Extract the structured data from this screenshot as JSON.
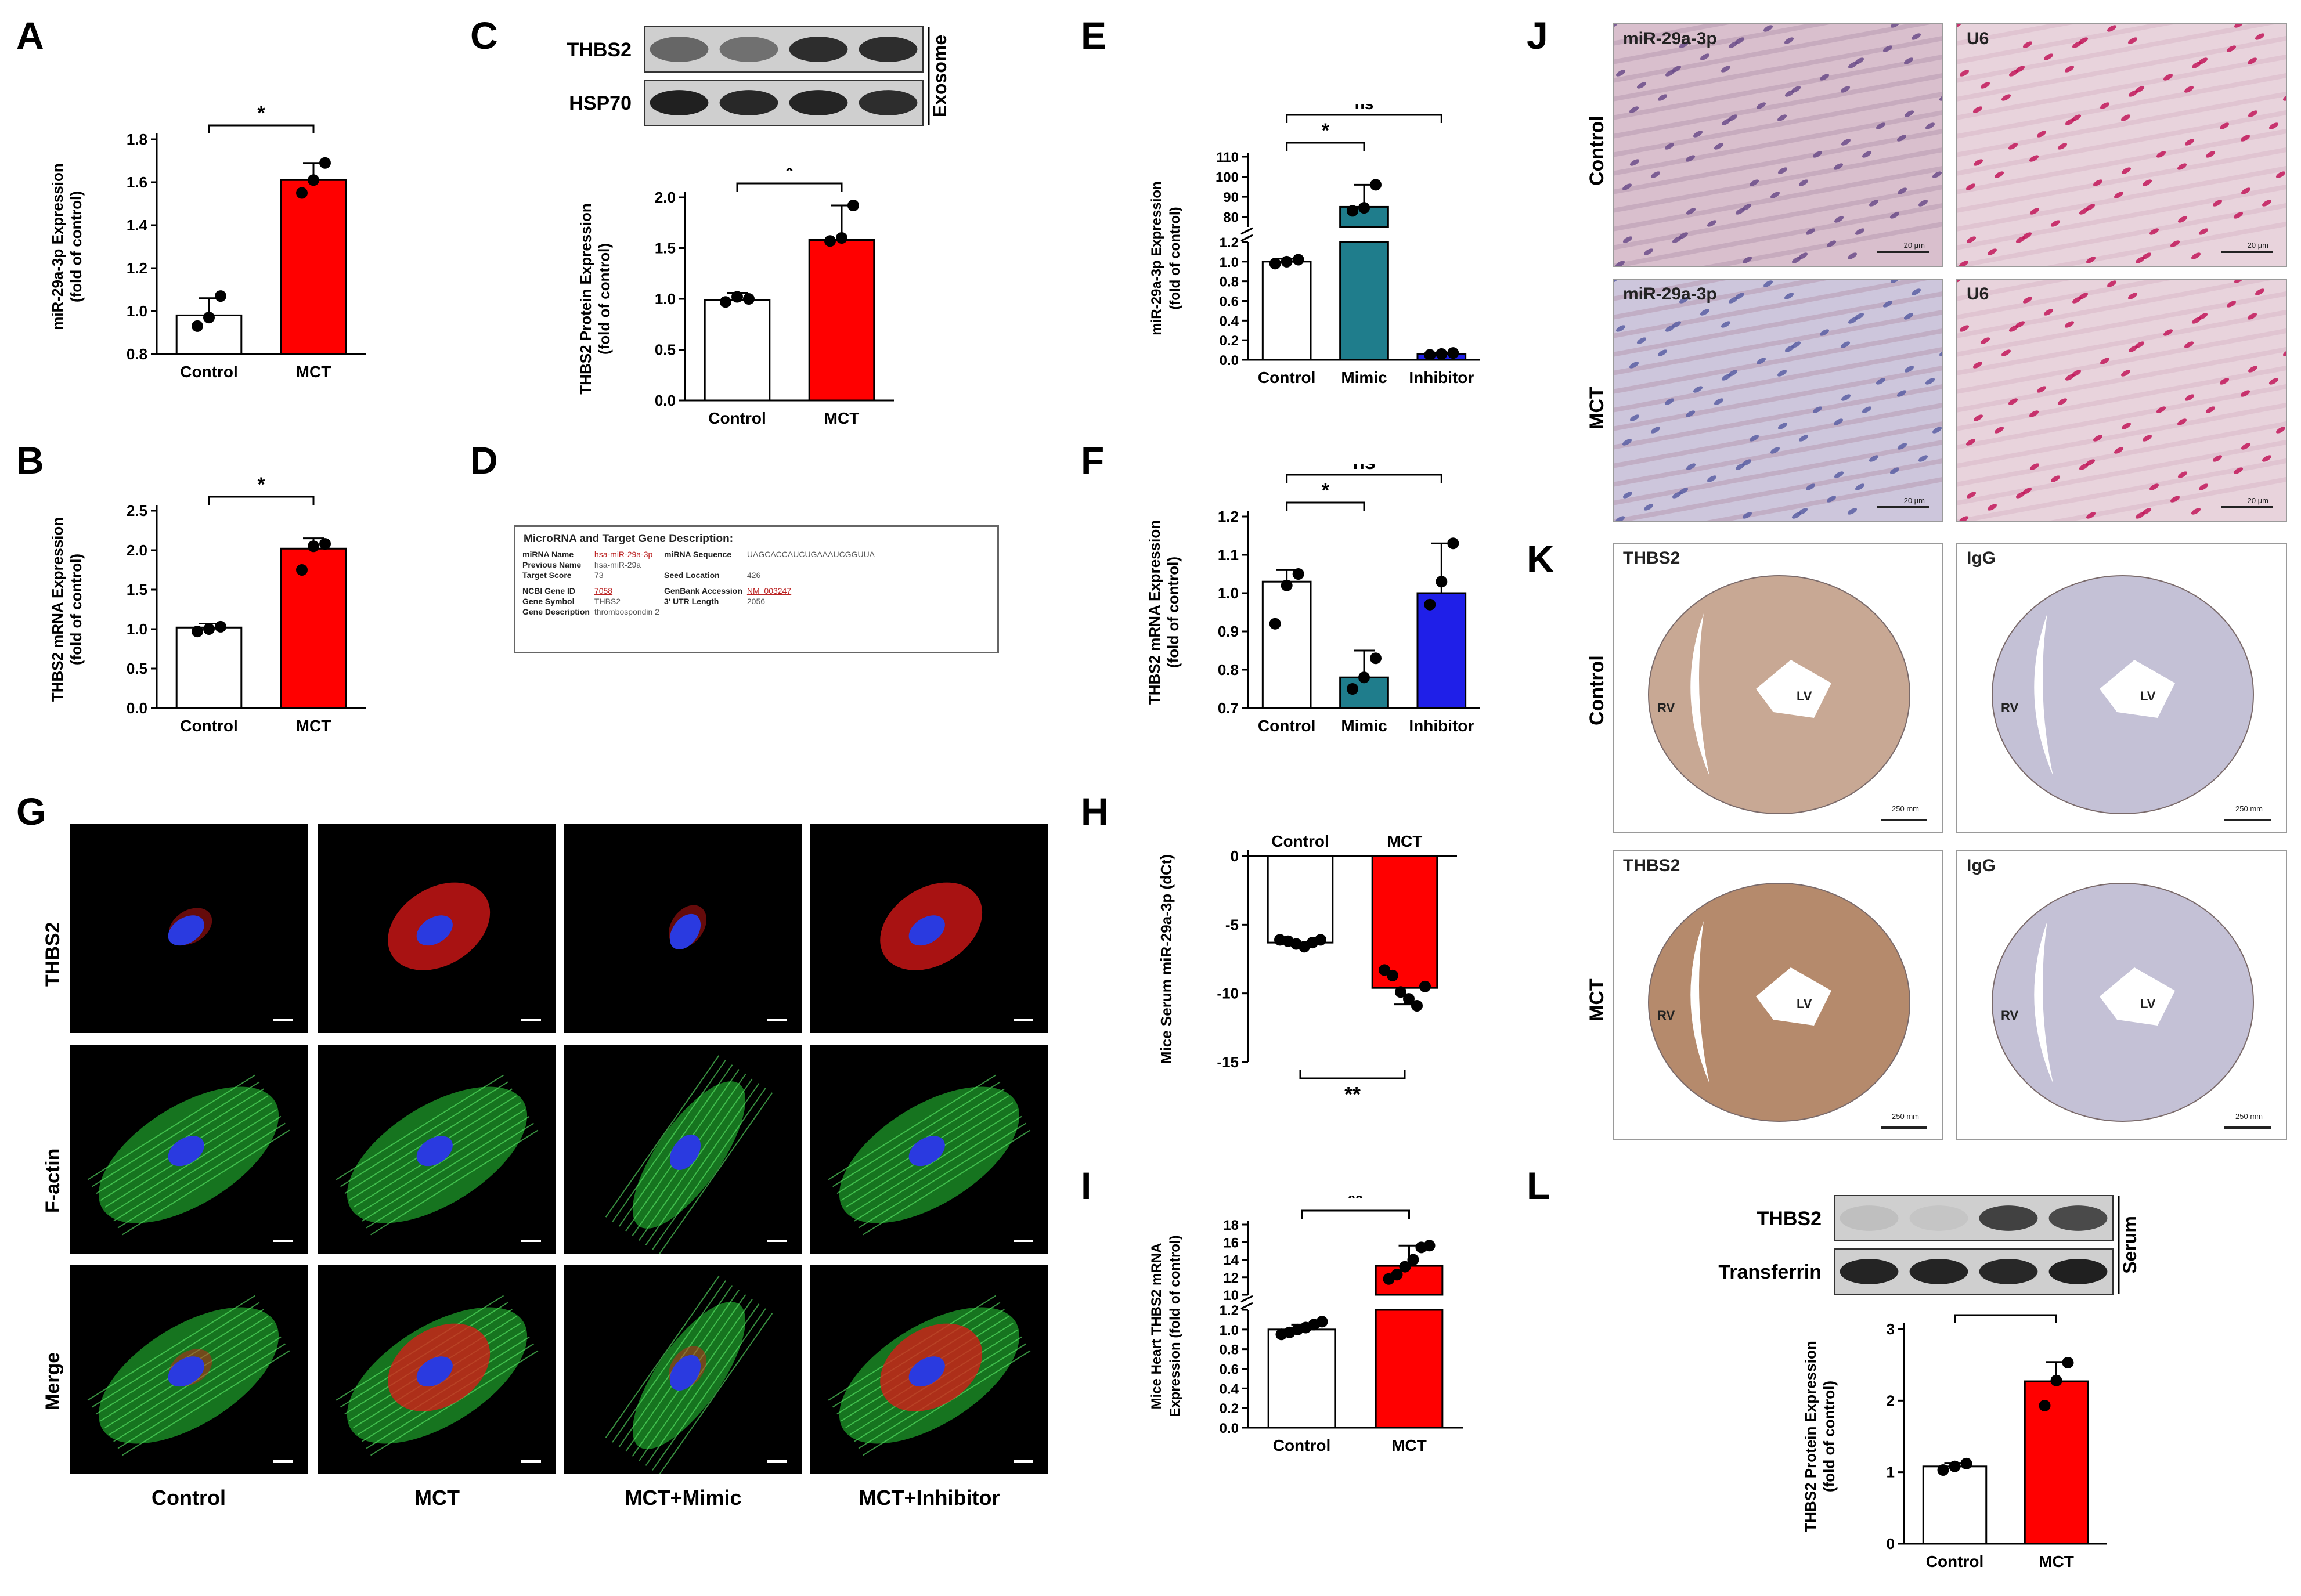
{
  "panel_labels": [
    "A",
    "B",
    "C",
    "D",
    "E",
    "F",
    "G",
    "H",
    "I",
    "J",
    "K",
    "L"
  ],
  "colors": {
    "control": "#ffffff",
    "mct": "#ff0000",
    "mimic": "#1f7d8c",
    "inhibitor": "#1f1fe8",
    "stroke": "#000000"
  },
  "blot_c": {
    "rows": [
      "THBS2",
      "HSP70"
    ],
    "side_label": "Exosome",
    "lanes": 4
  },
  "blot_l": {
    "rows": [
      "THBS2",
      "Transferrin"
    ],
    "side_label": "Serum",
    "lanes": 4
  },
  "panel_d": {
    "title": "MicroRNA and Target Gene Description:",
    "rows": [
      {
        "k1": "miRNA Name",
        "v1": "hsa-miR-29a-3p",
        "k2": "miRNA Sequence",
        "v2": "UAGCACCAUCUGAAAUCGGUUA"
      },
      {
        "k1": "Previous Name",
        "v1": "hsa-miR-29a",
        "k2": "",
        "v2": ""
      },
      {
        "k1": "Target Score",
        "v1": "73",
        "k2": "Seed Location",
        "v2": "426"
      },
      {
        "k1": "NCBI Gene ID",
        "v1": "7058",
        "k2": "GenBank Accession",
        "v2": "NM_003247"
      },
      {
        "k1": "Gene Symbol",
        "v1": "THBS2",
        "k2": "3' UTR Length",
        "v2": "2056"
      },
      {
        "k1": "Gene Description",
        "v1": "thrombospondin 2",
        "k2": "",
        "v2": ""
      }
    ]
  },
  "panel_g": {
    "rows": [
      "THBS2",
      "F-actin",
      "Merge"
    ],
    "columns": [
      "Control",
      "MCT",
      "MCT+Mimic",
      "MCT+Inhibitor"
    ]
  },
  "panel_j": {
    "rows": [
      "Control",
      "MCT"
    ],
    "tile_labels": [
      "miR-29a-3p",
      "U6"
    ],
    "scale": "20 μm"
  },
  "panel_k": {
    "rows": [
      "Control",
      "MCT"
    ],
    "tile_labels": [
      "THBS2",
      "IgG"
    ],
    "chambers": [
      "LV",
      "RV"
    ],
    "scale": "250 mm"
  },
  "chart_data": [
    {
      "id": "A",
      "type": "bar",
      "categories": [
        "Control",
        "MCT"
      ],
      "values": [
        0.98,
        1.61
      ],
      "points": [
        [
          0.93,
          0.97,
          1.07
        ],
        [
          1.55,
          1.61,
          1.69
        ]
      ],
      "errors": [
        0.08,
        0.08
      ],
      "ylim": [
        0.8,
        1.8
      ],
      "yticks": [
        0.8,
        1.0,
        1.2,
        1.4,
        1.6,
        1.8
      ],
      "tick_labels": [
        "0.8",
        "1.0",
        "1.2",
        "1.4",
        "1.6",
        "1.8"
      ],
      "ylabel": [
        "miR-29a-3p Expression",
        "(fold of control)"
      ],
      "sig": [
        {
          "from": 0,
          "to": 1,
          "label": "*"
        }
      ]
    },
    {
      "id": "B",
      "type": "bar",
      "categories": [
        "Control",
        "MCT"
      ],
      "values": [
        1.02,
        2.02
      ],
      "points": [
        [
          0.97,
          1.0,
          1.03
        ],
        [
          1.75,
          2.05,
          2.08
        ]
      ],
      "errors": [
        0.05,
        0.13
      ],
      "ylim": [
        0,
        2.5
      ],
      "yticks": [
        0,
        0.5,
        1.0,
        1.5,
        2.0,
        2.5
      ],
      "tick_labels": [
        "0.0",
        "0.5",
        "1.0",
        "1.5",
        "2.0",
        "2.5"
      ],
      "ylabel": [
        "THBS2 mRNA Expression",
        "(fold of control)"
      ],
      "sig": [
        {
          "from": 0,
          "to": 1,
          "label": "*"
        }
      ]
    },
    {
      "id": "C",
      "type": "bar",
      "categories": [
        "Control",
        "MCT"
      ],
      "values": [
        0.99,
        1.58
      ],
      "points": [
        [
          0.97,
          1.02,
          1.0
        ],
        [
          1.57,
          1.6,
          1.92
        ]
      ],
      "errors": [
        0.07,
        0.34
      ],
      "ylim": [
        0,
        2.0
      ],
      "yticks": [
        0,
        0.5,
        1.0,
        1.5,
        2.0
      ],
      "tick_labels": [
        "0.0",
        "0.5",
        "1.0",
        "1.5",
        "2.0"
      ],
      "ylabel": [
        "THBS2 Protein Expression",
        "(fold of control)"
      ],
      "sig": [
        {
          "from": 0,
          "to": 1,
          "label": "*"
        }
      ]
    },
    {
      "id": "E",
      "type": "bar",
      "categories": [
        "Control",
        "Mimic",
        "Inhibitor"
      ],
      "values": [
        1.0,
        85.0,
        0.06
      ],
      "points": [
        [
          0.98,
          1.0,
          1.02
        ],
        [
          83.0,
          84.5,
          96.0
        ],
        [
          0.05,
          0.06,
          0.07
        ]
      ],
      "errors": [
        0.03,
        11.0,
        0.01
      ],
      "broken_axis": {
        "lower": [
          0,
          1.2
        ],
        "upper": [
          75,
          110
        ]
      },
      "tick_labels_lower": [
        "0.0",
        "0.2",
        "0.4",
        "0.6",
        "0.8",
        "1.0",
        "1.2"
      ],
      "tick_labels_upper": [
        "80",
        "90",
        "100",
        "110"
      ],
      "ylabel": [
        "miR-29a-3p Expression",
        "(fold of control)"
      ],
      "sig": [
        {
          "from": 0,
          "to": 1,
          "label": "*"
        },
        {
          "from": 0,
          "to": 2,
          "label": "ns"
        }
      ]
    },
    {
      "id": "F",
      "type": "bar",
      "categories": [
        "Control",
        "Mimic",
        "Inhibitor"
      ],
      "values": [
        1.03,
        0.78,
        1.0
      ],
      "points": [
        [
          0.92,
          1.02,
          1.05
        ],
        [
          0.75,
          0.78,
          0.83
        ],
        [
          0.97,
          1.03,
          1.13
        ]
      ],
      "errors": [
        0.03,
        0.07,
        0.13
      ],
      "ylim": [
        0.7,
        1.2
      ],
      "yticks": [
        0.7,
        0.8,
        0.9,
        1.0,
        1.1,
        1.2
      ],
      "tick_labels": [
        "0.7",
        "0.8",
        "0.9",
        "1.0",
        "1.1",
        "1.2"
      ],
      "ylabel": [
        "THBS2 mRNA Expression",
        "(fold of control)"
      ],
      "sig": [
        {
          "from": 0,
          "to": 1,
          "label": "*"
        },
        {
          "from": 0,
          "to": 2,
          "label": "ns"
        }
      ]
    },
    {
      "id": "H",
      "type": "bar",
      "categories": [
        "Control",
        "MCT"
      ],
      "values": [
        -6.3,
        -9.6
      ],
      "points": [
        [
          -6.1,
          -6.2,
          -6.4,
          -6.6,
          -6.3,
          -6.1
        ],
        [
          -8.3,
          -8.7,
          -9.9,
          -10.4,
          -10.9,
          -9.5
        ]
      ],
      "errors": [
        0.2,
        1.2
      ],
      "ylim": [
        -15,
        0
      ],
      "yticks": [
        -15,
        -10,
        -5,
        0
      ],
      "tick_labels": [
        "-15",
        "-10",
        "-5",
        "0"
      ],
      "ylabel": [
        "Mice Serum miR-29a-3p (dCt)"
      ],
      "sig": [
        {
          "from": 0,
          "to": 1,
          "label": "**"
        }
      ]
    },
    {
      "id": "I",
      "type": "bar",
      "categories": [
        "Control",
        "MCT"
      ],
      "values": [
        1.0,
        13.3
      ],
      "points": [
        [
          0.95,
          0.97,
          1.0,
          1.02,
          1.05,
          1.08
        ],
        [
          11.8,
          12.3,
          13.2,
          14.0,
          15.4,
          15.6
        ]
      ],
      "errors": [
        0.05,
        2.3
      ],
      "broken_axis": {
        "lower": [
          0,
          1.2
        ],
        "upper": [
          10,
          18
        ]
      },
      "tick_labels_lower": [
        "0.0",
        "0.2",
        "0.4",
        "0.6",
        "0.8",
        "1.0",
        "1.2"
      ],
      "tick_labels_upper": [
        "10",
        "12",
        "14",
        "16",
        "18"
      ],
      "ylabel": [
        "Mice Heart THBS2 mRNA",
        "Expression (fold of control)"
      ],
      "sig": [
        {
          "from": 0,
          "to": 1,
          "label": "**"
        }
      ]
    },
    {
      "id": "L",
      "type": "bar",
      "categories": [
        "Control",
        "MCT"
      ],
      "values": [
        1.08,
        2.27
      ],
      "points": [
        [
          1.03,
          1.08,
          1.12
        ],
        [
          1.93,
          2.28,
          2.53
        ]
      ],
      "errors": [
        0.05,
        0.27
      ],
      "ylim": [
        0,
        3
      ],
      "yticks": [
        0,
        1,
        2,
        3
      ],
      "tick_labels": [
        "0",
        "1",
        "2",
        "3"
      ],
      "ylabel": [
        "THBS2 Protein Expression",
        "(fold of control)"
      ],
      "sig": [
        {
          "from": 0,
          "to": 1,
          "label": "*"
        }
      ]
    }
  ]
}
